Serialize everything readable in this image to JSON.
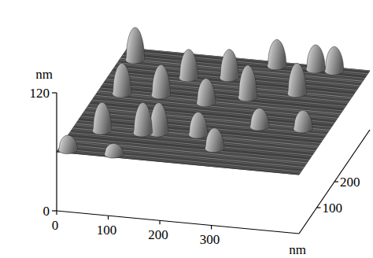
{
  "chart_data": {
    "type": "surface3d",
    "x_label": "nm",
    "z_label": "nm",
    "xlim": [
      0,
      470
    ],
    "xticks": [
      0,
      100,
      200,
      300
    ],
    "ylim": [
      0,
      400
    ],
    "yticks": [
      100,
      200
    ],
    "zlim": [
      0,
      120
    ],
    "zticks": [
      0,
      120
    ],
    "surface_level": 60,
    "color": "#b4b4b4",
    "peaks": {
      "x": [
        28,
        148,
        222,
        294,
        369,
        405,
        46,
        119,
        211,
        280,
        365,
        56,
        133,
        162,
        236,
        283,
        338,
        420,
        18,
        107
      ],
      "y": [
        363,
        316,
        330,
        389,
        390,
        390,
        236,
        244,
        231,
        265,
        296,
        95,
        101,
        106,
        114,
        69,
        163,
        170,
        14,
        14
      ],
      "height": [
        32,
        28,
        28,
        26,
        24,
        24,
        30,
        30,
        24,
        32,
        30,
        28,
        30,
        30,
        22,
        20,
        18,
        18,
        14,
        10
      ]
    }
  }
}
